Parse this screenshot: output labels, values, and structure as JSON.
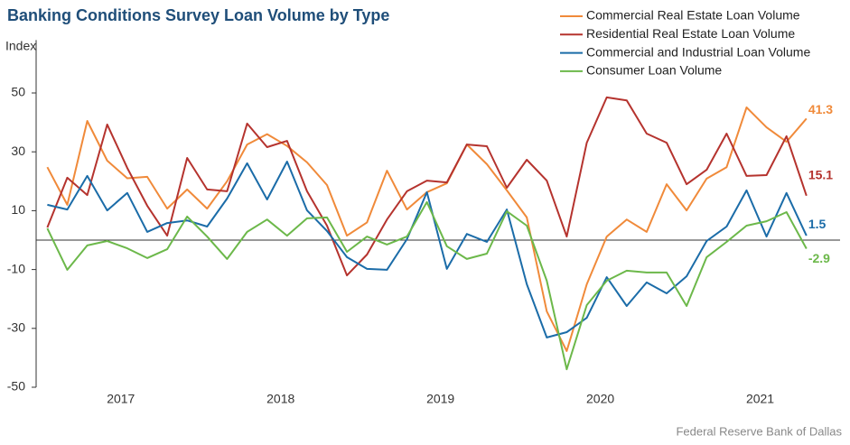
{
  "chart_data": {
    "type": "line",
    "title": "Banking Conditions Survey Loan Volume by Type",
    "y_label": "Index",
    "source": "Federal Reserve Bank of Dallas",
    "x": [
      2016.54,
      2016.665,
      2016.79,
      2016.915,
      2017.04,
      2017.165,
      2017.29,
      2017.415,
      2017.54,
      2017.665,
      2017.79,
      2017.915,
      2018.04,
      2018.165,
      2018.29,
      2018.415,
      2018.54,
      2018.665,
      2018.79,
      2018.915,
      2019.04,
      2019.165,
      2019.29,
      2019.415,
      2019.54,
      2019.665,
      2019.79,
      2019.915,
      2020.04,
      2020.165,
      2020.29,
      2020.415,
      2020.54,
      2020.665,
      2020.79,
      2020.915,
      2021.04,
      2021.165,
      2021.29
    ],
    "xlim": [
      2016.47,
      2021.5
    ],
    "xticks": [
      2017,
      2018,
      2019,
      2020,
      2021
    ],
    "ylim": [
      -50,
      68
    ],
    "yticks": [
      -50,
      -30,
      -10,
      10,
      30,
      50
    ],
    "series": [
      {
        "name": "Commercial Real Estate Loan Volume",
        "color": "#f08a3a",
        "values": [
          24.8,
          12,
          40.5,
          27,
          21,
          21.5,
          10.7,
          17.2,
          10.7,
          20,
          32.5,
          36,
          32,
          26.4,
          18.7,
          1.5,
          6,
          23.6,
          10.4,
          16.3,
          19.3,
          32.5,
          25.8,
          16.9,
          7.7,
          -24.2,
          -37.7,
          -15,
          1.2,
          7,
          2.8,
          19,
          10.1,
          20.9,
          24.8,
          45.1,
          38.3,
          33.4,
          41.3
        ]
      },
      {
        "name": "Residential Real Estate Loan Volume",
        "color": "#b5332e",
        "values": [
          4.3,
          21.2,
          15.3,
          39.3,
          24.5,
          11.7,
          1.5,
          27.9,
          17.2,
          16.6,
          39.6,
          31.6,
          33.7,
          16.6,
          4.9,
          -12,
          -4.9,
          7,
          16.6,
          20.2,
          19.6,
          32.5,
          31.9,
          17.8,
          27.3,
          20.2,
          1.2,
          33.1,
          48.5,
          47.5,
          36.2,
          33.1,
          19,
          23.9,
          36.2,
          21.8,
          22.1,
          35.3,
          15.1
        ]
      },
      {
        "name": "Commercial and Industrial Loan Volume",
        "color": "#1b6ca8",
        "values": [
          12,
          10.4,
          21.8,
          10.1,
          16,
          2.8,
          5.8,
          6.7,
          4.6,
          14.1,
          26.1,
          13.8,
          26.7,
          10.1,
          3.1,
          -5.8,
          -9.8,
          -10.1,
          0.3,
          16.3,
          -9.8,
          2.1,
          -0.6,
          10.4,
          -15,
          -33.1,
          -31.3,
          -26.4,
          -12.6,
          -22.4,
          -14.4,
          -18.1,
          -12.3,
          -0.3,
          4.6,
          16.9,
          1.2,
          16,
          1.5
        ]
      },
      {
        "name": "Consumer Loan Volume",
        "color": "#6cb84a",
        "values": [
          4,
          -10.1,
          -1.8,
          -0.3,
          -2.8,
          -6.1,
          -3.1,
          8,
          1.2,
          -6.4,
          2.8,
          7,
          1.5,
          7.4,
          7.7,
          -4,
          1.2,
          -1.5,
          1.2,
          12.9,
          -2.1,
          -6.4,
          -4.6,
          9.8,
          4.9,
          -13.8,
          -43.9,
          -22.1,
          -13.8,
          -10.4,
          -11,
          -11,
          -22.4,
          -5.8,
          -0.6,
          4.9,
          6.4,
          9.5,
          -2.9
        ]
      }
    ]
  }
}
